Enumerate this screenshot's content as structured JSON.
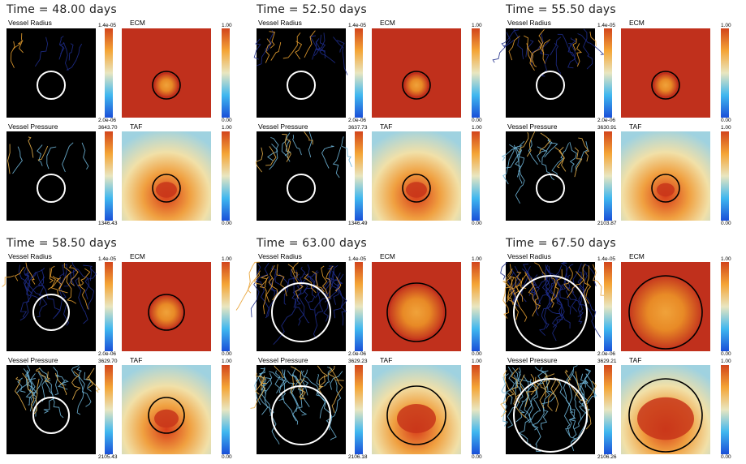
{
  "labels": {
    "vessel_radius": "Vessel Radius",
    "ecm": "ECM",
    "vessel_pressure": "Vessel Pressure",
    "taf": "TAF"
  },
  "panels": [
    {
      "time": "Time = 48.00 days",
      "radius_max": "1.4e-05",
      "radius_min": "2.0e-06",
      "ecm_max": "1.00",
      "ecm_min": "0.00",
      "pressure_max": "3643.70",
      "pressure_min": "1346.43",
      "taf_max": "1.00",
      "taf_min": "0.00"
    },
    {
      "time": "Time = 52.50 days",
      "radius_max": "1.4e-05",
      "radius_min": "2.0e-06",
      "ecm_max": "1.00",
      "ecm_min": "0.00",
      "pressure_max": "3637.73",
      "pressure_min": "1346.49",
      "taf_max": "1.00",
      "taf_min": "0.00"
    },
    {
      "time": "Time = 55.50 days",
      "radius_max": "1.4e-05",
      "radius_min": "2.0e-06",
      "ecm_max": "1.00",
      "ecm_min": "0.00",
      "pressure_max": "3630.91",
      "pressure_min": "2103.87",
      "taf_max": "1.00",
      "taf_min": "0.00"
    },
    {
      "time": "Time = 58.50 days",
      "radius_max": "1.4e-05",
      "radius_min": "2.0e-06",
      "ecm_max": "1.00",
      "ecm_min": "0.00",
      "pressure_max": "3629.70",
      "pressure_min": "2105.43",
      "taf_max": "1.00",
      "taf_min": "0.00"
    },
    {
      "time": "Time = 63.00 days",
      "radius_max": "1.4e-05",
      "radius_min": "2.0e-06",
      "ecm_max": "1.00",
      "ecm_min": "0.00",
      "pressure_max": "3629.23",
      "pressure_min": "2106.18",
      "taf_max": "1.00",
      "taf_min": "0.00"
    },
    {
      "time": "Time = 67.50 days",
      "radius_max": "1.4e-05",
      "radius_min": "2.0e-06",
      "ecm_max": "1.00",
      "ecm_min": "0.00",
      "pressure_max": "3629.21",
      "pressure_min": "2106.26",
      "taf_max": "1.00",
      "taf_min": "0.00"
    }
  ],
  "colors": {
    "background": "#000000",
    "ecm_red": "#c0301c",
    "tumor_orange": "#e07a18",
    "vessel_blue": "#1e2c8a",
    "vessel_orange": "#e8a030",
    "contour_white": "#ffffff",
    "contour_black": "#000000"
  },
  "colorbar_icon": "rainbow-colorbar"
}
